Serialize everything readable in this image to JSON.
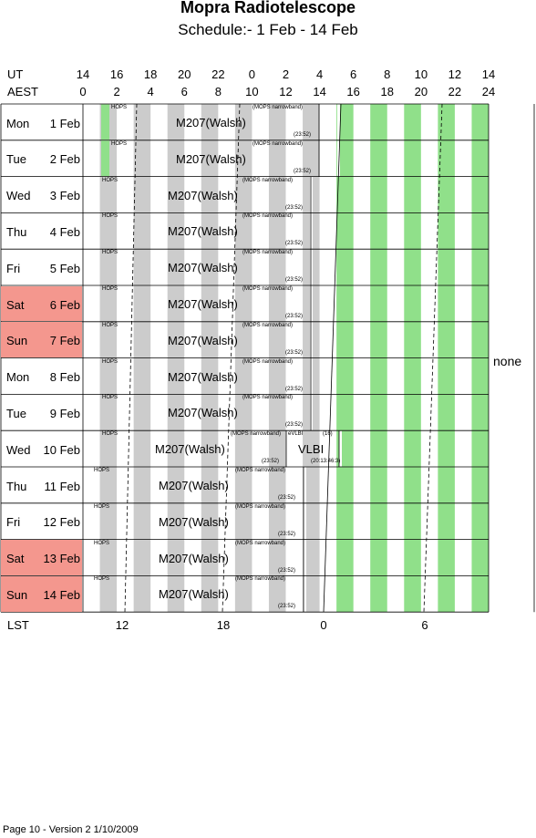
{
  "title": "Mopra Radiotelescope",
  "subtitle": "Schedule:- 1  Feb - 14 Feb",
  "header": {
    "ut_label": "UT",
    "aest_label": "AEST",
    "ut_ticks": [
      "14",
      "16",
      "18",
      "20",
      "22",
      "0",
      "2",
      "4",
      "6",
      "8",
      "10",
      "12",
      "14"
    ],
    "aest_ticks": [
      "0",
      "2",
      "4",
      "6",
      "8",
      "10",
      "12",
      "14",
      "16",
      "18",
      "20",
      "22",
      "24"
    ]
  },
  "days": [
    {
      "name": "Mon",
      "date": "1 Feb",
      "weekend": false,
      "hops": "HOPS",
      "project": "M207(Walsh)",
      "mops": "(MOPS narrowband)",
      "lst": "(23:52)"
    },
    {
      "name": "Tue",
      "date": "2 Feb",
      "weekend": false,
      "hops": "HOPS",
      "project": "M207(Walsh)",
      "mops": "(MOPS narrowband)",
      "lst": "(23:52)"
    },
    {
      "name": "Wed",
      "date": "3 Feb",
      "weekend": false,
      "hops": "HOPS",
      "project": "M207(Walsh)",
      "mops": "(MOPS narrowband)",
      "lst": "(23:52)"
    },
    {
      "name": "Thu",
      "date": "4 Feb",
      "weekend": false,
      "hops": "HOPS",
      "project": "M207(Walsh)",
      "mops": "(MOPS narrowband)",
      "lst": "(23:52)"
    },
    {
      "name": "Fri",
      "date": "5 Feb",
      "weekend": false,
      "hops": "HOPS",
      "project": "M207(Walsh)",
      "mops": "(MOPS narrowband)",
      "lst": "(23:52)"
    },
    {
      "name": "Sat",
      "date": "6 Feb",
      "weekend": true,
      "hops": "HOPS",
      "project": "M207(Walsh)",
      "mops": "(MOPS narrowband)",
      "lst": "(23:52)"
    },
    {
      "name": "Sun",
      "date": "7 Feb",
      "weekend": true,
      "hops": "HOPS",
      "project": "M207(Walsh)",
      "mops": "(MOPS narrowband)",
      "lst": "(23:52)"
    },
    {
      "name": "Mon",
      "date": "8 Feb",
      "weekend": false,
      "hops": "HOPS",
      "project": "M207(Walsh)",
      "mops": "(MOPS narrowband)",
      "lst": "(23:52)"
    },
    {
      "name": "Tue",
      "date": "9 Feb",
      "weekend": false,
      "hops": "HOPS",
      "project": "M207(Walsh)",
      "mops": "(MOPS narrowband)",
      "lst": "(23:52)"
    },
    {
      "name": "Wed",
      "date": "10 Feb",
      "weekend": false,
      "hops": "HOPS",
      "project": "M207(Walsh)",
      "mops": "(MOPS narrowband)",
      "lst": "(23:52)",
      "vlbi": {
        "label": "VLBI",
        "top": "eVLBI",
        "code": "(16)",
        "lst": "(20:13:46:3)"
      }
    },
    {
      "name": "Thu",
      "date": "11 Feb",
      "weekend": false,
      "hops": "HOPS",
      "project": "M207(Walsh)",
      "mops": "(MOPS narrowband)",
      "lst": "(23:52)"
    },
    {
      "name": "Fri",
      "date": "12 Feb",
      "weekend": false,
      "hops": "HOPS",
      "project": "M207(Walsh)",
      "mops": "(MOPS narrowband)",
      "lst": "(23:52)"
    },
    {
      "name": "Sat",
      "date": "13 Feb",
      "weekend": true,
      "hops": "HOPS",
      "project": "M207(Walsh)",
      "mops": "(MOPS narrowband)",
      "lst": "(23:52)"
    },
    {
      "name": "Sun",
      "date": "14 Feb",
      "weekend": true,
      "hops": "HOPS",
      "project": "M207(Walsh)",
      "mops": "(MOPS narrowband)",
      "lst": "(23:52)"
    }
  ],
  "side_note": "none",
  "lst": {
    "label": "LST",
    "ticks": [
      "12",
      "18",
      "0",
      "6"
    ]
  },
  "footer": "Page 10 - Version 2  1/10/2009",
  "colors": {
    "weekend": "#f4978e",
    "stripe_grey": "#cccccc",
    "stripe_green": "#90e08a"
  }
}
